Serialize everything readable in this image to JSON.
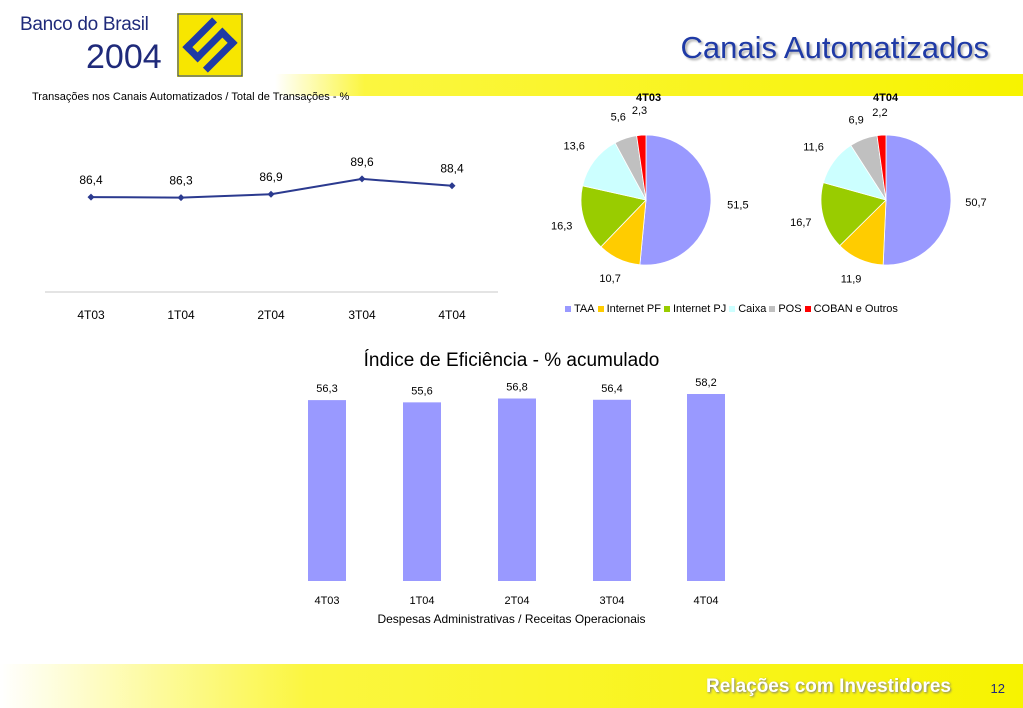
{
  "header": {
    "brand_name": "Banco do Brasil",
    "brand_year": "2004",
    "title": "Canais Automatizados"
  },
  "footer": {
    "text": "Relações com Investidores",
    "page": "12"
  },
  "colors": {
    "brand_blue": "#1f2a7a",
    "title_blue": "#1f3aa6",
    "yellow": "#f7f300",
    "line": "#2b3a8f",
    "bar": "#9999ff"
  },
  "chart_data": [
    {
      "type": "line",
      "title": "Transações nos Canais Automatizados / Total de Transações - %",
      "categories": [
        "4T03",
        "1T04",
        "2T04",
        "3T04",
        "4T04"
      ],
      "values": [
        86.4,
        86.3,
        86.9,
        89.6,
        88.4
      ],
      "labels": [
        "86,4",
        "86,3",
        "86,9",
        "89,6",
        "88,4"
      ],
      "ylim": [
        70,
        100
      ],
      "grid": false
    },
    {
      "type": "pie",
      "title": "4T03",
      "slices": [
        {
          "category": "TAA",
          "value": 51.5,
          "label": "51,5"
        },
        {
          "category": "Internet PF",
          "value": 10.7,
          "label": "10,7"
        },
        {
          "category": "Internet PJ",
          "value": 16.3,
          "label": "16,3"
        },
        {
          "category": "Caixa",
          "value": 13.6,
          "label": "13,6"
        },
        {
          "category": "POS",
          "value": 5.6,
          "label": "5,6"
        },
        {
          "category": "COBAN e Outros",
          "value": 2.3,
          "label": "2,3"
        }
      ]
    },
    {
      "type": "pie",
      "title": "4T04",
      "slices": [
        {
          "category": "TAA",
          "value": 50.7,
          "label": "50,7"
        },
        {
          "category": "Internet PF",
          "value": 11.9,
          "label": "11,9"
        },
        {
          "category": "Internet PJ",
          "value": 16.7,
          "label": "16,7"
        },
        {
          "category": "Caixa",
          "value": 11.6,
          "label": "11,6"
        },
        {
          "category": "POS",
          "value": 6.9,
          "label": "6,9"
        },
        {
          "category": "COBAN e Outros",
          "value": 2.2,
          "label": "2,2"
        }
      ]
    },
    {
      "type": "bar",
      "title": "Índice de Eficiência - % acumulado",
      "xlabel": "Despesas Administrativas / Receitas Operacionais",
      "categories": [
        "4T03",
        "1T04",
        "2T04",
        "3T04",
        "4T04"
      ],
      "values": [
        56.3,
        55.6,
        56.8,
        56.4,
        58.2
      ],
      "labels": [
        "56,3",
        "55,6",
        "56,8",
        "56,4",
        "58,2"
      ],
      "ylim": [
        0,
        60
      ]
    }
  ],
  "legend": {
    "placement": "bottom",
    "items": [
      {
        "name": "TAA",
        "color": "#9999ff"
      },
      {
        "name": "Internet PF",
        "color": "#ffcc00"
      },
      {
        "name": "Internet PJ",
        "color": "#99cc00"
      },
      {
        "name": "Caixa",
        "color": "#ccffff"
      },
      {
        "name": "POS",
        "color": "#c0c0c0"
      },
      {
        "name": "COBAN e Outros",
        "color": "#ff0000"
      }
    ]
  }
}
